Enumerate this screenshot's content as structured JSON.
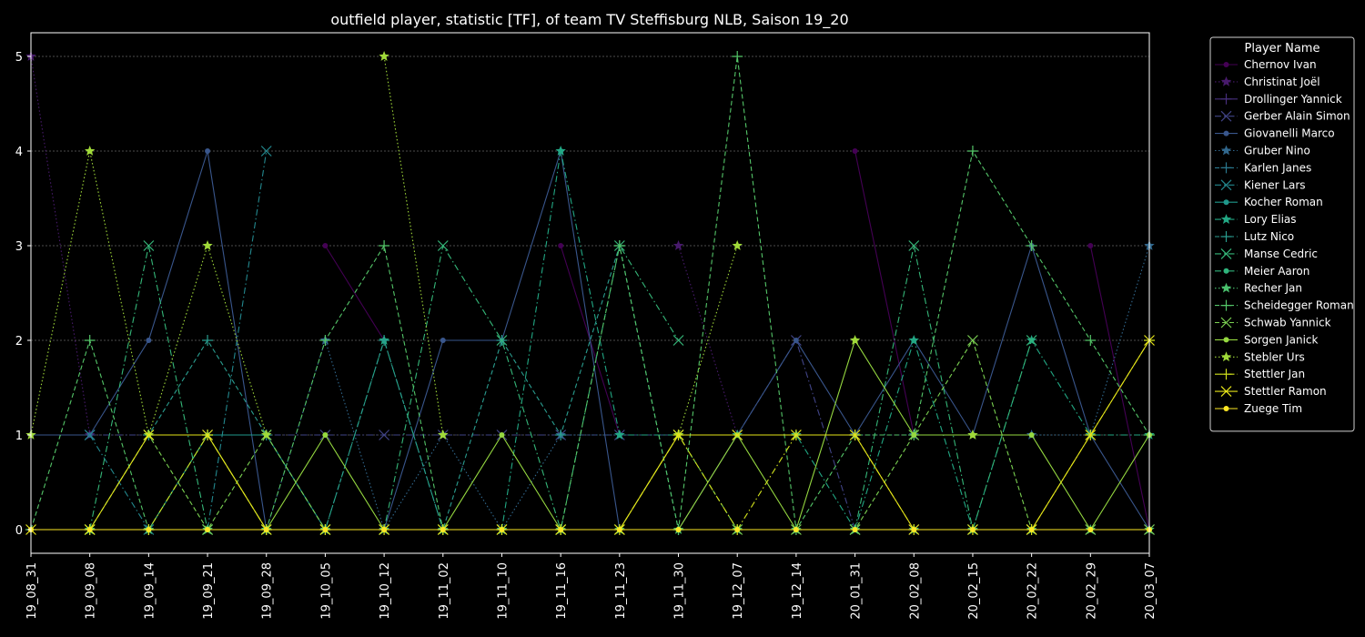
{
  "chart_data": {
    "type": "line",
    "title": "outfield player, statistic [TF], of team TV Steffisburg NLB, Saison 19_20",
    "xlabel": "",
    "ylabel": "",
    "ylim": [
      -0.25,
      5.25
    ],
    "yticks": [
      0,
      1,
      2,
      3,
      4,
      5
    ],
    "grid": "horizontal-dotted",
    "legend": {
      "title": "Player Name",
      "placement": "outside-right-top"
    },
    "x": [
      "19_08_31",
      "19_09_08",
      "19_09_14",
      "19_09_21",
      "19_09_28",
      "19_10_05",
      "19_10_12",
      "19_11_02",
      "19_11_10",
      "19_11_16",
      "19_11_23",
      "19_11_30",
      "19_12_07",
      "19_12_14",
      "20_01_31",
      "20_02_08",
      "20_02_15",
      "20_02_22",
      "20_02_29",
      "20_03_07"
    ],
    "series": [
      {
        "name": "Chernov Ivan",
        "color": "#440154",
        "marker": "circle",
        "dash": "solid",
        "values": [
          null,
          null,
          null,
          null,
          null,
          3,
          2,
          null,
          null,
          3,
          1,
          null,
          null,
          null,
          4,
          1,
          null,
          null,
          3,
          0
        ]
      },
      {
        "name": "Christinat Joël",
        "color": "#481a6c",
        "marker": "star",
        "dash": "dotted",
        "values": [
          5,
          1,
          null,
          null,
          null,
          null,
          null,
          null,
          0,
          0,
          null,
          3,
          1,
          null,
          null,
          null,
          null,
          null,
          null,
          null
        ]
      },
      {
        "name": "Drollinger Yannick",
        "color": "#472f7d",
        "marker": "plus",
        "dash": "solid",
        "values": [
          null,
          null,
          null,
          null,
          null,
          null,
          null,
          null,
          null,
          null,
          null,
          null,
          null,
          null,
          null,
          null,
          null,
          null,
          null,
          null
        ]
      },
      {
        "name": "Gerber Alain Simon",
        "color": "#414487",
        "marker": "x",
        "dash": "dashdot",
        "values": [
          null,
          1,
          1,
          1,
          1,
          1,
          1,
          1,
          1,
          1,
          1,
          1,
          1,
          2,
          0,
          0,
          0,
          0,
          0,
          0
        ]
      },
      {
        "name": "Giovanelli Marco",
        "color": "#39568c",
        "marker": "circle",
        "dash": "solid",
        "values": [
          1,
          1,
          2,
          4,
          0,
          0,
          0,
          2,
          2,
          4,
          0,
          0,
          1,
          2,
          1,
          2,
          1,
          3,
          1,
          0
        ]
      },
      {
        "name": "Gruber Nino",
        "color": "#31688e",
        "marker": "star",
        "dash": "dotted",
        "values": [
          null,
          0,
          0,
          0,
          0,
          2,
          0,
          1,
          0,
          1,
          1,
          1,
          1,
          1,
          1,
          1,
          1,
          1,
          1,
          3
        ]
      },
      {
        "name": "Karlen Janes",
        "color": "#2a788e",
        "marker": "plus",
        "dash": "dashed",
        "values": [
          null,
          null,
          null,
          null,
          null,
          null,
          null,
          null,
          null,
          null,
          null,
          null,
          null,
          null,
          null,
          null,
          null,
          null,
          null,
          null
        ]
      },
      {
        "name": "Kiener Lars",
        "color": "#23888e",
        "marker": "x",
        "dash": "dashdot",
        "values": [
          null,
          1,
          0,
          0,
          4,
          null,
          null,
          null,
          null,
          null,
          null,
          null,
          null,
          null,
          null,
          null,
          null,
          null,
          null,
          null
        ]
      },
      {
        "name": "Kocher Roman",
        "color": "#1f988b",
        "marker": "circle",
        "dash": "solid",
        "values": [
          null,
          0,
          0,
          1,
          1,
          0,
          0,
          0,
          0,
          0,
          0,
          0,
          0,
          0,
          0,
          0,
          0,
          0,
          0,
          0
        ]
      },
      {
        "name": "Lory Elias",
        "color": "#22a884",
        "marker": "star",
        "dash": "dashdot",
        "values": [
          null,
          0,
          0,
          0,
          0,
          0,
          2,
          0,
          0,
          4,
          1,
          1,
          1,
          1,
          0,
          2,
          0,
          2,
          1,
          1
        ]
      },
      {
        "name": "Lutz Nico",
        "color": "#2a9d8f",
        "marker": "plus",
        "dash": "dashed",
        "values": [
          null,
          0,
          1,
          2,
          1,
          0,
          2,
          0,
          2,
          1,
          3,
          0,
          null,
          null,
          null,
          null,
          null,
          null,
          null,
          null
        ]
      },
      {
        "name": "Manse Cedric",
        "color": "#35b779",
        "marker": "x",
        "dash": "dashdot",
        "values": [
          null,
          0,
          3,
          0,
          0,
          0,
          0,
          3,
          2,
          0,
          3,
          2,
          null,
          null,
          0,
          3,
          0,
          2,
          null,
          null
        ]
      },
      {
        "name": "Meier Aaron",
        "color": "#2fb47c",
        "marker": "circle",
        "dash": "dashdot",
        "values": [
          null,
          null,
          null,
          null,
          null,
          null,
          null,
          null,
          null,
          null,
          null,
          null,
          null,
          null,
          null,
          null,
          null,
          null,
          null,
          null
        ]
      },
      {
        "name": "Recher Jan",
        "color": "#4ac16d",
        "marker": "star",
        "dash": "dotted",
        "values": [
          null,
          0,
          0,
          0,
          0,
          0,
          0,
          0,
          0,
          0,
          0,
          0,
          0,
          0,
          0,
          0,
          0,
          0,
          0,
          0
        ]
      },
      {
        "name": "Scheidegger Roman",
        "color": "#54c568",
        "marker": "plus",
        "dash": "dashed",
        "values": [
          0,
          2,
          0,
          1,
          0,
          2,
          3,
          0,
          0,
          0,
          3,
          0,
          5,
          0,
          1,
          1,
          4,
          3,
          2,
          1
        ]
      },
      {
        "name": "Schwab Yannick",
        "color": "#7ad151",
        "marker": "x",
        "dash": "dashed",
        "values": [
          null,
          0,
          1,
          0,
          1,
          0,
          0,
          0,
          0,
          0,
          0,
          1,
          0,
          0,
          0,
          1,
          2,
          0,
          0,
          0
        ]
      },
      {
        "name": "Sorgen Janick",
        "color": "#95d840",
        "marker": "circle",
        "dash": "solid",
        "values": [
          0,
          0,
          0,
          0,
          0,
          1,
          0,
          0,
          1,
          0,
          0,
          0,
          1,
          0,
          2,
          1,
          1,
          1,
          0,
          1
        ]
      },
      {
        "name": "Stebler Urs",
        "color": "#a0da39",
        "marker": "star",
        "dash": "dotted",
        "values": [
          1,
          4,
          1,
          3,
          1,
          null,
          5,
          1,
          null,
          null,
          null,
          1,
          3,
          null,
          2,
          null,
          1,
          null,
          null,
          null
        ]
      },
      {
        "name": "Stettler Jan",
        "color": "#d0e11c",
        "marker": "plus",
        "dash": "dashdot",
        "values": [
          null,
          0,
          0,
          1,
          0,
          0,
          0,
          0,
          0,
          0,
          0,
          1,
          0,
          1,
          1,
          0,
          0,
          0,
          1,
          2
        ]
      },
      {
        "name": "Stettler Ramon",
        "color": "#e5e419",
        "marker": "x",
        "dash": "solid",
        "values": [
          0,
          0,
          1,
          1,
          0,
          0,
          0,
          0,
          0,
          0,
          0,
          1,
          1,
          1,
          1,
          0,
          0,
          0,
          1,
          2
        ]
      },
      {
        "name": "Zuege Tim",
        "color": "#fde725",
        "marker": "circle",
        "dash": "solid",
        "values": [
          0,
          0,
          0,
          0,
          0,
          0,
          0,
          0,
          0,
          0,
          0,
          0,
          0,
          0,
          0,
          0,
          0,
          0,
          0,
          0
        ]
      }
    ]
  }
}
